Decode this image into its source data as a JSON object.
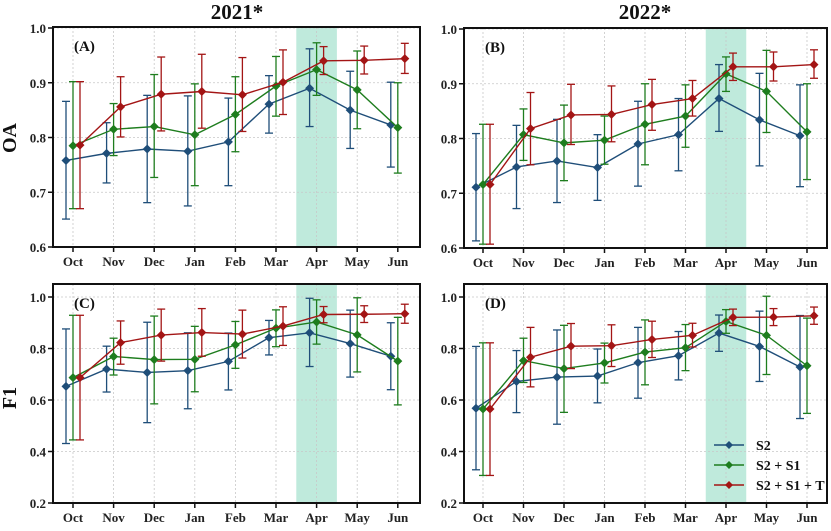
{
  "figure": {
    "column_titles": [
      "2021*",
      "2022*"
    ],
    "row_labels": [
      "OA",
      "F1"
    ]
  },
  "colors": {
    "S2": "#1f4e79",
    "S2 + S1": "#1e7d1e",
    "S2 + S1 + T": "#a31515",
    "highlight": "#bfeadc",
    "grid": "#c8c8c8"
  },
  "chart_data": [
    {
      "type": "line",
      "panel_label": "(A)",
      "title": "2021*",
      "xlabel": "",
      "ylabel": "OA",
      "categories": [
        "Oct",
        "Nov",
        "Dec",
        "Jan",
        "Feb",
        "Mar",
        "Apr",
        "May",
        "Jun"
      ],
      "ylim": [
        0.6,
        1.0
      ],
      "yticks": [
        "0.6",
        "0.7",
        "0.8",
        "0.9",
        "1.0"
      ],
      "grid": true,
      "highlight_category": "Apr",
      "series": [
        {
          "name": "S2",
          "values": [
            0.758,
            0.771,
            0.779,
            0.775,
            0.792,
            0.861,
            0.89,
            0.85,
            0.823
          ],
          "err_low": [
            0.651,
            0.717,
            0.681,
            0.675,
            0.712,
            0.808,
            0.82,
            0.78,
            0.746
          ],
          "err_high": [
            0.866,
            0.827,
            0.877,
            0.876,
            0.872,
            0.913,
            0.962,
            0.921,
            0.901
          ]
        },
        {
          "name": "S2 + S1",
          "values": [
            0.785,
            0.815,
            0.82,
            0.805,
            0.842,
            0.894,
            0.924,
            0.887,
            0.818
          ],
          "err_low": [
            0.67,
            0.767,
            0.727,
            0.712,
            0.774,
            0.839,
            0.877,
            0.816,
            0.735
          ],
          "err_high": [
            0.902,
            0.862,
            0.915,
            0.898,
            0.911,
            0.948,
            0.973,
            0.958,
            0.9
          ]
        },
        {
          "name": "S2 + S1 + T",
          "values": [
            0.786,
            0.856,
            0.879,
            0.884,
            0.878,
            0.901,
            0.94,
            0.941,
            0.944
          ],
          "err_low": [
            0.67,
            0.801,
            0.812,
            0.817,
            0.811,
            0.842,
            0.915,
            0.916,
            0.917
          ],
          "err_high": [
            0.902,
            0.911,
            0.947,
            0.952,
            0.946,
            0.96,
            0.966,
            0.967,
            0.972
          ]
        }
      ]
    },
    {
      "type": "line",
      "panel_label": "(B)",
      "title": "2022*",
      "xlabel": "",
      "ylabel": "",
      "categories": [
        "Oct",
        "Nov",
        "Dec",
        "Jan",
        "Feb",
        "Mar",
        "Apr",
        "May",
        "Jun"
      ],
      "ylim": [
        0.6,
        1.0
      ],
      "yticks": [
        "0.6",
        "0.7",
        "0.8",
        "0.9",
        "1.0"
      ],
      "grid": true,
      "highlight_category": "Apr",
      "series": [
        {
          "name": "S2",
          "values": [
            0.711,
            0.748,
            0.759,
            0.747,
            0.79,
            0.807,
            0.873,
            0.834,
            0.805
          ],
          "err_low": [
            0.613,
            0.672,
            0.683,
            0.687,
            0.713,
            0.741,
            0.813,
            0.75,
            0.712
          ],
          "err_high": [
            0.809,
            0.824,
            0.835,
            0.807,
            0.868,
            0.873,
            0.935,
            0.919,
            0.898
          ]
        },
        {
          "name": "S2 + S1",
          "values": [
            0.716,
            0.807,
            0.792,
            0.797,
            0.826,
            0.841,
            0.918,
            0.886,
            0.812
          ],
          "err_low": [
            0.607,
            0.76,
            0.723,
            0.753,
            0.752,
            0.784,
            0.886,
            0.811,
            0.725
          ],
          "err_high": [
            0.826,
            0.854,
            0.861,
            0.841,
            0.9,
            0.898,
            0.949,
            0.961,
            0.9
          ]
        },
        {
          "name": "S2 + S1 + T",
          "values": [
            0.716,
            0.818,
            0.843,
            0.844,
            0.862,
            0.873,
            0.931,
            0.931,
            0.935
          ],
          "err_low": [
            0.607,
            0.752,
            0.789,
            0.794,
            0.815,
            0.841,
            0.906,
            0.905,
            0.91
          ],
          "err_high": [
            0.826,
            0.884,
            0.899,
            0.896,
            0.908,
            0.906,
            0.956,
            0.958,
            0.962
          ]
        }
      ]
    },
    {
      "type": "line",
      "panel_label": "(C)",
      "title": "",
      "xlabel": "",
      "ylabel": "F1",
      "categories": [
        "Oct",
        "Nov",
        "Dec",
        "Jan",
        "Feb",
        "Mar",
        "Apr",
        "May",
        "Jun"
      ],
      "ylim": [
        0.2,
        1.0
      ],
      "yticks": [
        "0.2",
        "0.4",
        "0.6",
        "0.8",
        "1.0"
      ],
      "grid": true,
      "highlight_category": "Apr",
      "series": [
        {
          "name": "S2",
          "values": [
            0.653,
            0.72,
            0.707,
            0.714,
            0.75,
            0.842,
            0.861,
            0.819,
            0.77
          ],
          "err_low": [
            0.431,
            0.631,
            0.512,
            0.566,
            0.639,
            0.775,
            0.73,
            0.689,
            0.64
          ],
          "err_high": [
            0.876,
            0.809,
            0.902,
            0.861,
            0.86,
            0.909,
            0.995,
            0.949,
            0.9
          ]
        },
        {
          "name": "S2 + S1",
          "values": [
            0.687,
            0.769,
            0.757,
            0.758,
            0.814,
            0.879,
            0.903,
            0.853,
            0.751
          ],
          "err_low": [
            0.445,
            0.697,
            0.585,
            0.632,
            0.723,
            0.807,
            0.817,
            0.709,
            0.581
          ],
          "err_high": [
            0.929,
            0.84,
            0.926,
            0.886,
            0.905,
            0.95,
            0.989,
            0.997,
            0.921
          ]
        },
        {
          "name": "S2 + S1 + T",
          "values": [
            0.687,
            0.823,
            0.852,
            0.862,
            0.856,
            0.887,
            0.932,
            0.933,
            0.935
          ],
          "err_low": [
            0.445,
            0.739,
            0.751,
            0.77,
            0.763,
            0.812,
            0.9,
            0.901,
            0.898
          ],
          "err_high": [
            0.929,
            0.907,
            0.953,
            0.955,
            0.949,
            0.962,
            0.963,
            0.966,
            0.972
          ]
        }
      ]
    },
    {
      "type": "line",
      "panel_label": "(D)",
      "title": "",
      "xlabel": "",
      "ylabel": "",
      "categories": [
        "Oct",
        "Nov",
        "Dec",
        "Jan",
        "Feb",
        "Mar",
        "Apr",
        "May",
        "Jun"
      ],
      "ylim": [
        0.2,
        1.0
      ],
      "yticks": [
        "0.2",
        "0.4",
        "0.6",
        "0.8",
        "1.0"
      ],
      "grid": true,
      "highlight_category": "Apr",
      "legend": {
        "position": "bottom-right",
        "entries": [
          "S2",
          "S2 + S1",
          "S2 + S1 + T"
        ]
      },
      "series": [
        {
          "name": "S2",
          "values": [
            0.568,
            0.672,
            0.689,
            0.693,
            0.745,
            0.772,
            0.86,
            0.808,
            0.728
          ],
          "err_low": [
            0.329,
            0.551,
            0.506,
            0.589,
            0.607,
            0.678,
            0.789,
            0.672,
            0.528
          ],
          "err_high": [
            0.808,
            0.792,
            0.872,
            0.798,
            0.882,
            0.866,
            0.93,
            0.945,
            0.928
          ]
        },
        {
          "name": "S2 + S1",
          "values": [
            0.565,
            0.753,
            0.722,
            0.744,
            0.786,
            0.803,
            0.905,
            0.851,
            0.733
          ],
          "err_low": [
            0.307,
            0.668,
            0.552,
            0.666,
            0.659,
            0.714,
            0.859,
            0.699,
            0.548
          ],
          "err_high": [
            0.822,
            0.84,
            0.89,
            0.821,
            0.911,
            0.893,
            0.951,
            1.003,
            0.918
          ]
        },
        {
          "name": "S2 + S1 + T",
          "values": [
            0.565,
            0.766,
            0.809,
            0.811,
            0.835,
            0.851,
            0.921,
            0.922,
            0.927
          ],
          "err_low": [
            0.307,
            0.651,
            0.722,
            0.73,
            0.765,
            0.806,
            0.889,
            0.889,
            0.894
          ],
          "err_high": [
            0.822,
            0.882,
            0.897,
            0.892,
            0.906,
            0.898,
            0.953,
            0.955,
            0.961
          ]
        }
      ]
    }
  ]
}
